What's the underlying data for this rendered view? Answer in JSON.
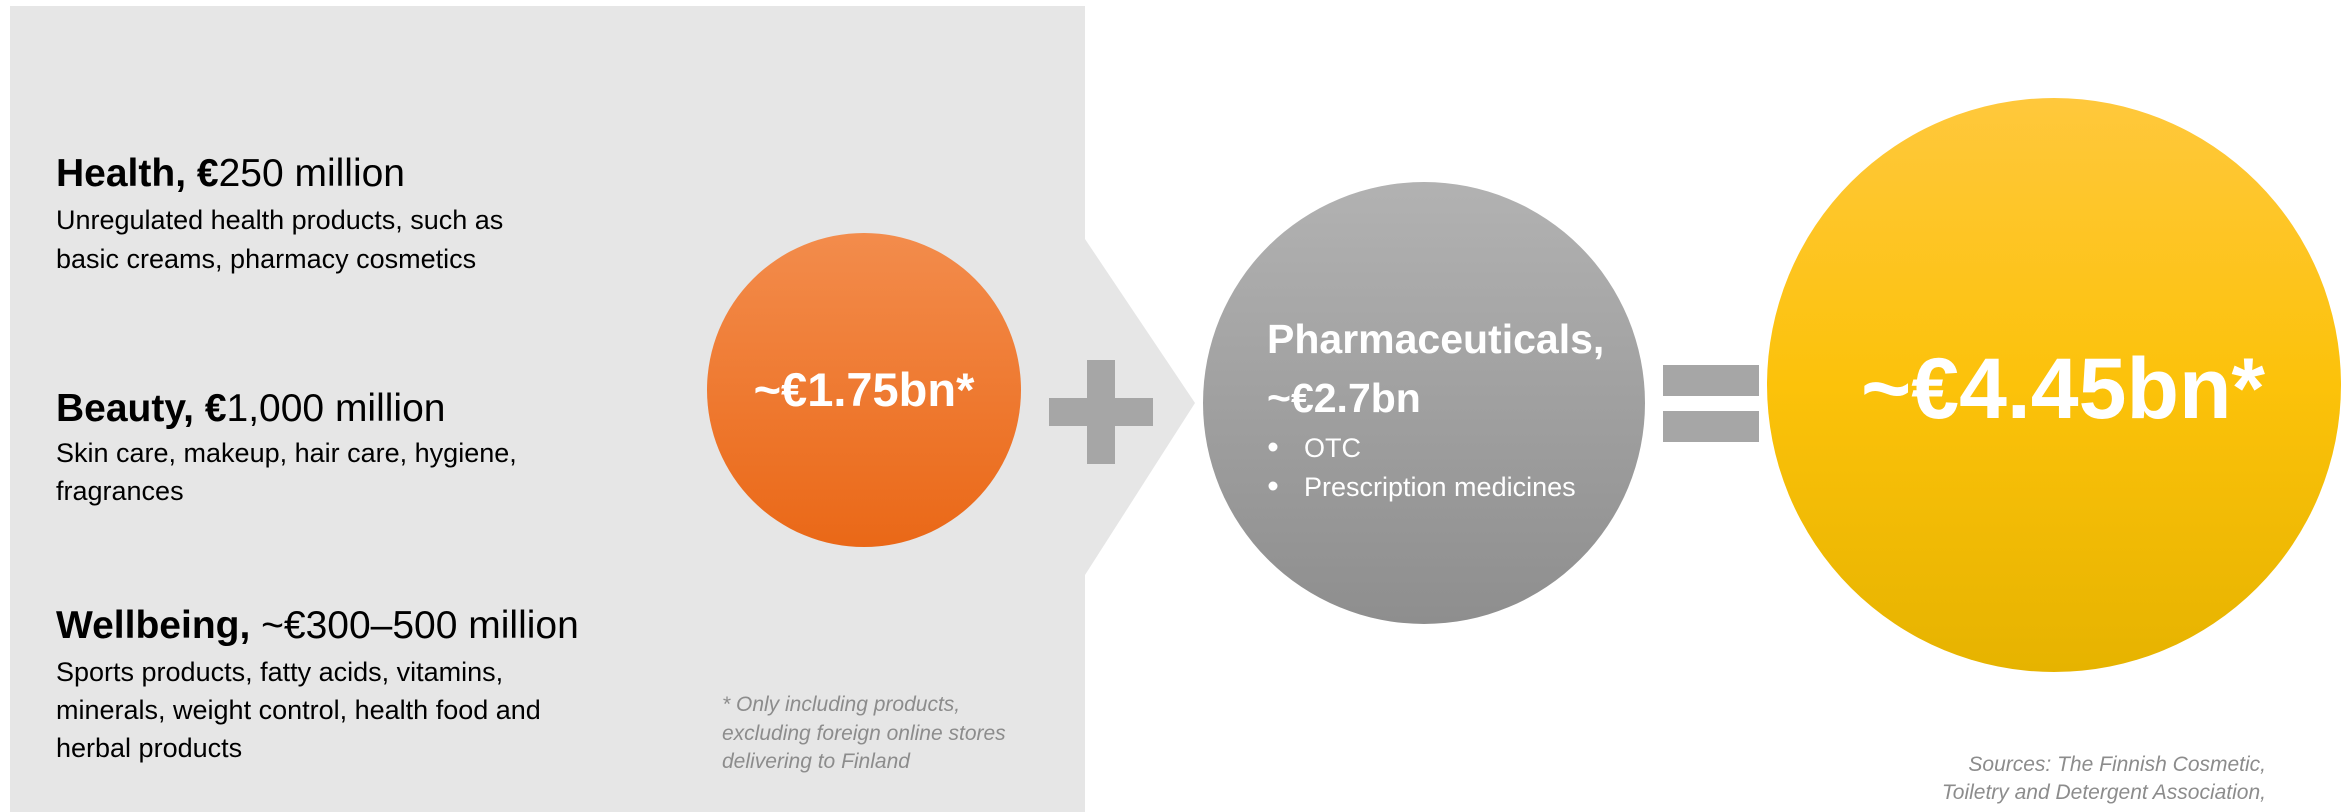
{
  "segments": [
    {
      "title_bold": "Health, €",
      "title_rest": "250 million",
      "lines": [
        "Unregulated health products, such as",
        "basic creams, pharmacy cosmetics"
      ]
    },
    {
      "title_bold": "Beauty, €",
      "title_rest": "1,000 million",
      "lines": [
        "Skin care, makeup, hair care, hygiene,",
        "fragrances"
      ]
    },
    {
      "title_bold": "Wellbeing,",
      "title_rest": " ~€300–500 million",
      "lines": [
        "Sports products, fatty acids, vitamins,",
        "minerals, weight control, health food and",
        "herbal products"
      ]
    }
  ],
  "consumer_total": "~€1.75bn*",
  "footnote": [
    "* Only including products,",
    "excluding foreign online stores",
    "delivering to Finland"
  ],
  "pharma": {
    "title": "Pharmaceuticals,",
    "value": "~€2.7bn",
    "bullets": [
      "OTC",
      "Prescription medicines"
    ]
  },
  "grand_total": "~€4.45bn*",
  "sources": [
    "Sources: The Finnish Cosmetic,",
    "Toiletry and Detergent Association,"
  ]
}
